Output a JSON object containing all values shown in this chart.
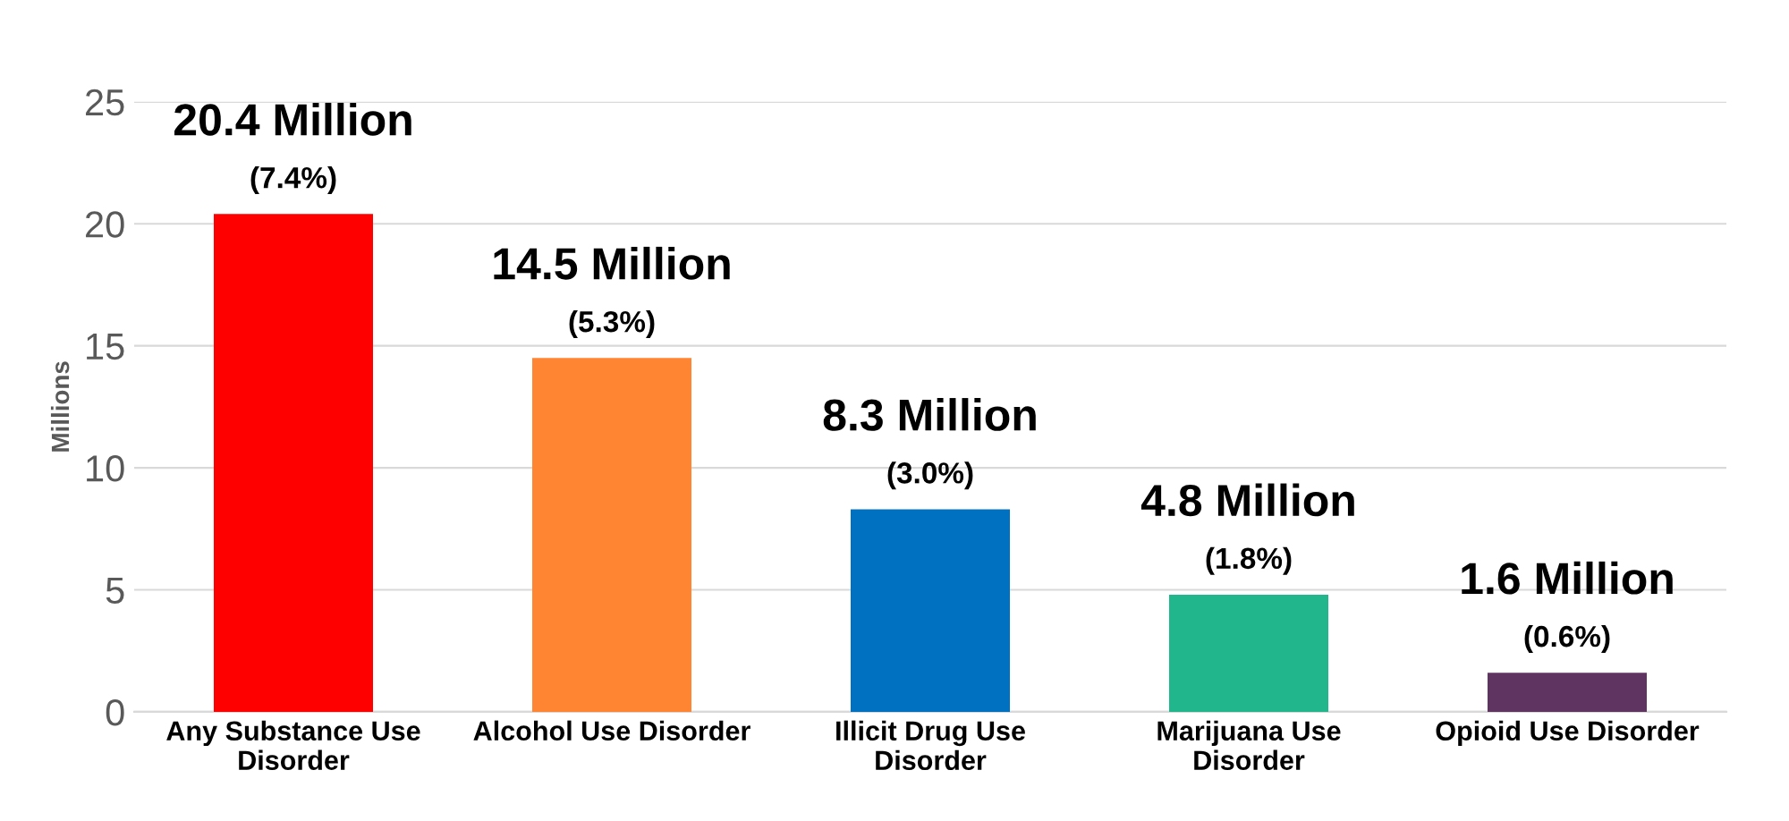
{
  "chart_data": {
    "type": "bar",
    "ylabel": "Millions",
    "categories": [
      "Any Substance Use\nDisorder",
      "Alcohol Use Disorder",
      "Illicit Drug Use\nDisorder",
      "Marijuana Use\nDisorder",
      "Opioid Use Disorder"
    ],
    "values": [
      20.4,
      14.5,
      8.3,
      4.8,
      1.6
    ],
    "colors": [
      "#ff0000",
      "#ff8533",
      "#0070c0",
      "#21b68b",
      "#5f3461"
    ],
    "value_labels": [
      "20.4 Million\n(7.4%)",
      "14.5 Million\n(5.3%)",
      "8.3 Million\n(3.0%)",
      "4.8 Million\n(1.8%)",
      "1.6 Million\n(0.6%)"
    ],
    "ylim": [
      0,
      25
    ],
    "yticks": [
      0,
      5,
      10,
      15,
      20,
      25
    ],
    "grid": "y",
    "legend": false
  }
}
